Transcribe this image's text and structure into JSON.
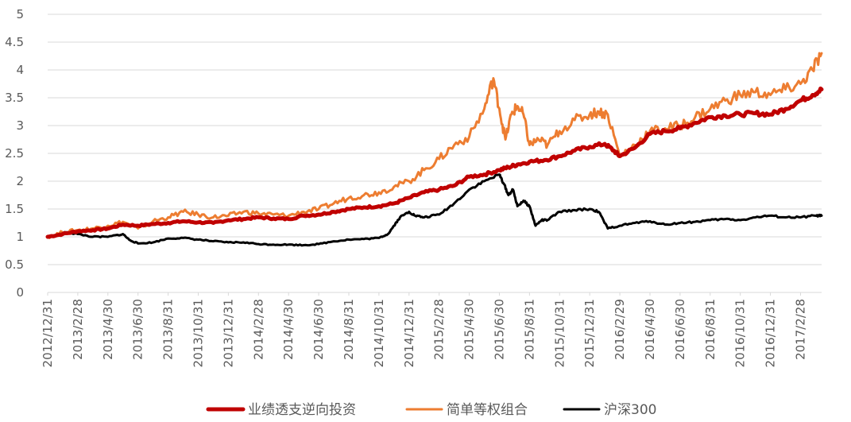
{
  "chart_data": {
    "type": "line",
    "grid": true,
    "legend_position": "bottom",
    "ylim": [
      0,
      5
    ],
    "y_ticks": [
      "0",
      "0.5",
      "1",
      "1.5",
      "2",
      "2.5",
      "3",
      "3.5",
      "4",
      "4.5",
      "5"
    ],
    "x_ticks": [
      "2012/12/31",
      "2013/2/28",
      "2013/4/30",
      "2013/6/30",
      "2013/8/31",
      "2013/10/31",
      "2013/12/31",
      "2014/2/28",
      "2014/4/30",
      "2014/6/30",
      "2014/8/31",
      "2014/10/31",
      "2014/12/31",
      "2015/2/28",
      "2015/4/30",
      "2015/6/30",
      "2015/8/31",
      "2015/10/31",
      "2015/12/31",
      "2016/2/29",
      "2016/4/30",
      "2016/6/30",
      "2016/8/31",
      "2016/10/31",
      "2016/12/31",
      "2017/2/28"
    ],
    "x_range_index": [
      0,
      25.7
    ],
    "series": [
      {
        "name": "业绩透支逆向投资",
        "color": "#C00000",
        "x": [
          0,
          0.5,
          1,
          1.5,
          2,
          2.5,
          3,
          3.5,
          4,
          4.5,
          5,
          5.5,
          6,
          6.5,
          7,
          7.5,
          8,
          8.5,
          9,
          9.5,
          10,
          10.5,
          11,
          11.5,
          12,
          12.5,
          13,
          13.5,
          14,
          14.5,
          15,
          15.3,
          15.6,
          16,
          16.5,
          17,
          17.5,
          18,
          18.5,
          18.8,
          19,
          19.5,
          20,
          20.5,
          21,
          21.5,
          22,
          22.5,
          23,
          23.5,
          24,
          24.5,
          25,
          25.4,
          25.7
        ],
        "values": [
          1.0,
          1.05,
          1.1,
          1.12,
          1.15,
          1.22,
          1.2,
          1.23,
          1.25,
          1.28,
          1.26,
          1.25,
          1.3,
          1.32,
          1.35,
          1.33,
          1.32,
          1.38,
          1.4,
          1.45,
          1.5,
          1.53,
          1.55,
          1.6,
          1.7,
          1.8,
          1.85,
          1.92,
          2.08,
          2.12,
          2.2,
          2.25,
          2.3,
          2.35,
          2.38,
          2.45,
          2.55,
          2.62,
          2.67,
          2.55,
          2.45,
          2.6,
          2.85,
          2.9,
          2.95,
          3.05,
          3.15,
          3.18,
          3.2,
          3.22,
          3.2,
          3.3,
          3.45,
          3.55,
          3.65
        ]
      },
      {
        "name": "简单等权组合",
        "color": "#ED7D31",
        "x": [
          0,
          0.5,
          1,
          1.5,
          2,
          2.5,
          3,
          3.5,
          4,
          4.5,
          5,
          5.5,
          6,
          6.5,
          7,
          7.5,
          8,
          8.5,
          9,
          9.5,
          10,
          10.5,
          11,
          11.5,
          12,
          12.5,
          13,
          13.5,
          14,
          14.5,
          14.8,
          15,
          15.2,
          15.4,
          15.6,
          15.8,
          16,
          16.3,
          16.6,
          17,
          17.5,
          18,
          18.3,
          18.6,
          19,
          19.5,
          20,
          20.5,
          21,
          21.5,
          22,
          22.5,
          23,
          23.5,
          24,
          24.5,
          25,
          25.4,
          25.7
        ],
        "values": [
          1.0,
          1.08,
          1.12,
          1.15,
          1.2,
          1.27,
          1.15,
          1.28,
          1.35,
          1.45,
          1.4,
          1.35,
          1.38,
          1.45,
          1.42,
          1.4,
          1.38,
          1.45,
          1.5,
          1.6,
          1.7,
          1.75,
          1.8,
          1.9,
          2.0,
          2.2,
          2.4,
          2.65,
          2.8,
          3.3,
          3.85,
          3.3,
          2.75,
          3.2,
          3.35,
          3.2,
          2.65,
          2.75,
          2.65,
          2.9,
          3.1,
          3.2,
          3.25,
          3.2,
          2.45,
          2.65,
          2.9,
          2.95,
          3.0,
          3.15,
          3.3,
          3.45,
          3.55,
          3.6,
          3.55,
          3.65,
          3.75,
          4.0,
          4.3
        ]
      },
      {
        "name": "沪深300",
        "color": "#000000",
        "x": [
          0,
          0.3,
          0.6,
          1,
          1.5,
          2,
          2.5,
          2.7,
          3,
          3.5,
          4,
          4.5,
          5,
          5.5,
          6,
          6.5,
          7,
          7.5,
          8,
          8.5,
          9,
          9.5,
          10,
          10.5,
          11,
          11.3,
          11.5,
          11.7,
          12,
          12.2,
          12.5,
          13,
          13.5,
          14,
          14.5,
          15,
          15.15,
          15.3,
          15.45,
          15.6,
          15.8,
          16,
          16.2,
          16.4,
          16.6,
          17,
          17.5,
          18,
          18.3,
          18.6,
          19,
          19.5,
          20,
          20.5,
          21,
          21.5,
          22,
          22.5,
          23,
          23.5,
          24,
          24.5,
          25,
          25.5,
          25.7
        ],
        "values": [
          1.0,
          1.02,
          1.08,
          1.05,
          1.0,
          1.0,
          1.05,
          0.95,
          0.88,
          0.9,
          0.97,
          0.98,
          0.95,
          0.92,
          0.9,
          0.9,
          0.87,
          0.86,
          0.86,
          0.85,
          0.87,
          0.92,
          0.95,
          0.96,
          0.98,
          1.05,
          1.2,
          1.35,
          1.45,
          1.38,
          1.35,
          1.4,
          1.6,
          1.85,
          2.0,
          2.12,
          1.95,
          1.75,
          1.85,
          1.55,
          1.65,
          1.55,
          1.2,
          1.3,
          1.3,
          1.45,
          1.48,
          1.5,
          1.45,
          1.15,
          1.2,
          1.25,
          1.28,
          1.22,
          1.25,
          1.27,
          1.3,
          1.32,
          1.3,
          1.35,
          1.38,
          1.35,
          1.35,
          1.38,
          1.38
        ]
      }
    ]
  }
}
